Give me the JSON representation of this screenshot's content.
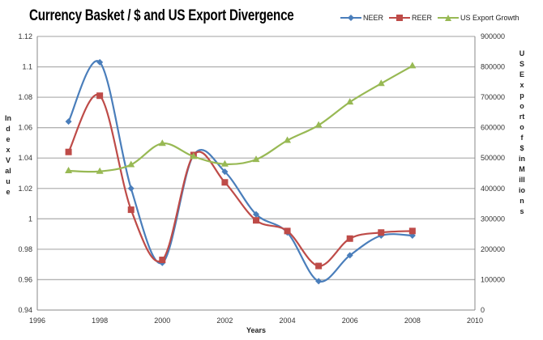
{
  "chart_data": {
    "type": "line",
    "title": "Currency Basket / $ and US Export Divergence",
    "xlabel": "Years",
    "ylabel": "Index Value",
    "y2label": "US Export of $ in Millions",
    "xlim": [
      1996,
      2010
    ],
    "xticks": [
      1996,
      1998,
      2000,
      2002,
      2004,
      2006,
      2008,
      2010
    ],
    "ylim": [
      0.94,
      1.12
    ],
    "yticks": [
      0.94,
      0.96,
      0.98,
      1,
      1.02,
      1.04,
      1.06,
      1.08,
      1.1,
      1.12
    ],
    "y2lim": [
      0,
      900000
    ],
    "y2ticks": [
      0,
      100000,
      200000,
      300000,
      400000,
      500000,
      600000,
      700000,
      800000,
      900000
    ],
    "grid": "horizontal",
    "legend_position": "top-right",
    "x": [
      1997,
      1998,
      1999,
      2000,
      2001,
      2002,
      2003,
      2004,
      2005,
      2006,
      2007,
      2008
    ],
    "series": [
      {
        "name": "NEER",
        "axis": "left",
        "color": "#4a7ebb",
        "marker": "diamond",
        "values": [
          1.064,
          1.103,
          1.02,
          0.971,
          1.042,
          1.031,
          1.003,
          0.991,
          0.959,
          0.976,
          0.989,
          0.989
        ]
      },
      {
        "name": "REER",
        "axis": "left",
        "color": "#be4b48",
        "marker": "square",
        "values": [
          1.044,
          1.081,
          1.006,
          0.973,
          1.042,
          1.024,
          0.999,
          0.992,
          0.969,
          0.987,
          0.991,
          0.992
        ]
      },
      {
        "name": "US Export Growth",
        "axis": "right",
        "color": "#98b954",
        "marker": "triangle",
        "values": [
          458000,
          456000,
          478000,
          548000,
          505000,
          480000,
          495000,
          558000,
          608000,
          684000,
          745000,
          803000
        ]
      }
    ]
  }
}
